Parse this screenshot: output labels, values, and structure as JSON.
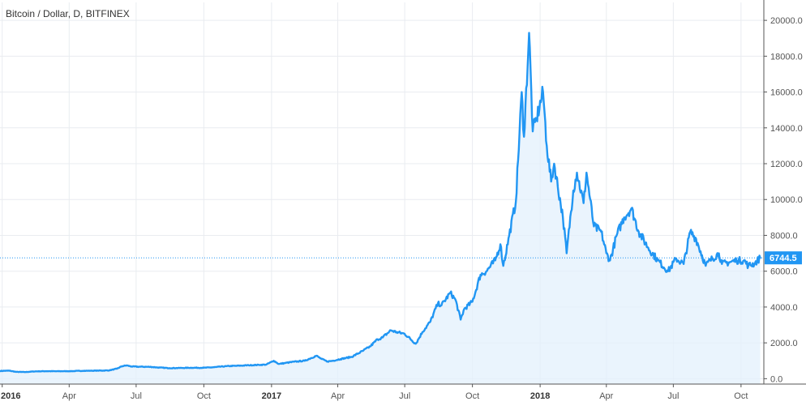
{
  "chart_data": {
    "type": "area",
    "title": "Bitcoin / Dollar, D, BITFINEX",
    "xlabel": "",
    "ylabel": "",
    "ylim": [
      -300,
      21000
    ],
    "xlim": [
      "2015-12-29",
      "2018-11-01"
    ],
    "grid": true,
    "yticks": [
      "0.0",
      "2000.0",
      "4000.0",
      "6000.0",
      "8000.0",
      "10000.0",
      "12000.0",
      "14000.0",
      "16000.0",
      "18000.0",
      "20000.0"
    ],
    "xticks": [
      {
        "label": "2016",
        "date": "2016-01-01",
        "bold": true
      },
      {
        "label": "Apr",
        "date": "2016-04-01",
        "bold": false
      },
      {
        "label": "Jul",
        "date": "2016-07-01",
        "bold": false
      },
      {
        "label": "Oct",
        "date": "2016-10-01",
        "bold": false
      },
      {
        "label": "2017",
        "date": "2017-01-01",
        "bold": true
      },
      {
        "label": "Apr",
        "date": "2017-04-01",
        "bold": false
      },
      {
        "label": "Jul",
        "date": "2017-07-01",
        "bold": false
      },
      {
        "label": "Oct",
        "date": "2017-10-01",
        "bold": false
      },
      {
        "label": "2018",
        "date": "2018-01-01",
        "bold": true
      },
      {
        "label": "Apr",
        "date": "2018-04-01",
        "bold": false
      },
      {
        "label": "Jul",
        "date": "2018-07-01",
        "bold": false
      },
      {
        "label": "Oct",
        "date": "2018-10-01",
        "bold": false
      }
    ],
    "last_value": 6744.5,
    "last_value_label": "6744.5",
    "colors": {
      "line": "#2196f3",
      "fill": "#e3f0fc",
      "grid": "#e9ecf0",
      "axis": "#555555"
    },
    "series": [
      {
        "x": [
          "2015-12-29",
          "2016-01-10",
          "2016-01-20",
          "2016-02-01",
          "2016-02-15",
          "2016-03-01",
          "2016-03-15",
          "2016-04-01",
          "2016-04-20",
          "2016-05-10",
          "2016-05-25",
          "2016-06-05",
          "2016-06-12",
          "2016-06-18",
          "2016-06-25",
          "2016-07-05",
          "2016-07-20",
          "2016-08-02",
          "2016-08-15",
          "2016-09-01",
          "2016-09-15",
          "2016-10-01",
          "2016-10-15",
          "2016-11-01",
          "2016-11-15",
          "2016-12-01",
          "2016-12-15",
          "2016-12-25",
          "2017-01-04",
          "2017-01-11",
          "2017-01-20",
          "2017-02-01",
          "2017-02-15",
          "2017-03-03",
          "2017-03-10",
          "2017-03-18",
          "2017-03-25",
          "2017-04-05",
          "2017-04-20",
          "2017-05-05",
          "2017-05-15",
          "2017-05-25",
          "2017-06-01",
          "2017-06-12",
          "2017-06-20",
          "2017-07-01",
          "2017-07-16",
          "2017-07-25",
          "2017-08-05",
          "2017-08-15",
          "2017-08-20",
          "2017-09-01",
          "2017-09-08",
          "2017-09-15",
          "2017-09-20",
          "2017-10-01",
          "2017-10-12",
          "2017-10-20",
          "2017-11-01",
          "2017-11-08",
          "2017-11-12",
          "2017-11-20",
          "2017-11-29",
          "2017-12-07",
          "2017-12-10",
          "2017-12-17",
          "2017-12-22",
          "2017-12-27",
          "2018-01-05",
          "2018-01-10",
          "2018-01-16",
          "2018-01-20",
          "2018-02-01",
          "2018-02-06",
          "2018-02-15",
          "2018-02-20",
          "2018-03-01",
          "2018-03-05",
          "2018-03-15",
          "2018-03-25",
          "2018-04-01",
          "2018-04-06",
          "2018-04-15",
          "2018-04-25",
          "2018-05-05",
          "2018-05-15",
          "2018-05-28",
          "2018-06-10",
          "2018-06-24",
          "2018-07-05",
          "2018-07-15",
          "2018-07-24",
          "2018-08-01",
          "2018-08-14",
          "2018-08-20",
          "2018-09-01",
          "2018-09-05",
          "2018-09-15",
          "2018-09-25",
          "2018-10-05",
          "2018-10-11",
          "2018-10-20",
          "2018-10-27"
        ],
        "y": [
          430,
          450,
          380,
          370,
          410,
          420,
          415,
          420,
          440,
          450,
          460,
          560,
          700,
          740,
          680,
          670,
          660,
          620,
          590,
          600,
          610,
          610,
          640,
          700,
          720,
          750,
          770,
          790,
          1000,
          820,
          880,
          950,
          1000,
          1280,
          1100,
          960,
          1000,
          1100,
          1220,
          1550,
          1800,
          2200,
          2300,
          2700,
          2600,
          2500,
          1950,
          2600,
          3200,
          4200,
          4100,
          4800,
          4400,
          3300,
          3900,
          4300,
          5800,
          6000,
          6600,
          7500,
          6300,
          8000,
          9900,
          16000,
          13500,
          19300,
          13800,
          14500,
          16000,
          13000,
          11000,
          12000,
          9000,
          7000,
          10500,
          11500,
          9800,
          11500,
          8500,
          8200,
          7000,
          6600,
          8000,
          9000,
          9500,
          8200,
          7300,
          6600,
          6000,
          6700,
          6400,
          8200,
          7800,
          6300,
          6600,
          7000,
          6400,
          6500,
          6600,
          6600,
          6300,
          6450,
          6744.5
        ]
      }
    ]
  }
}
